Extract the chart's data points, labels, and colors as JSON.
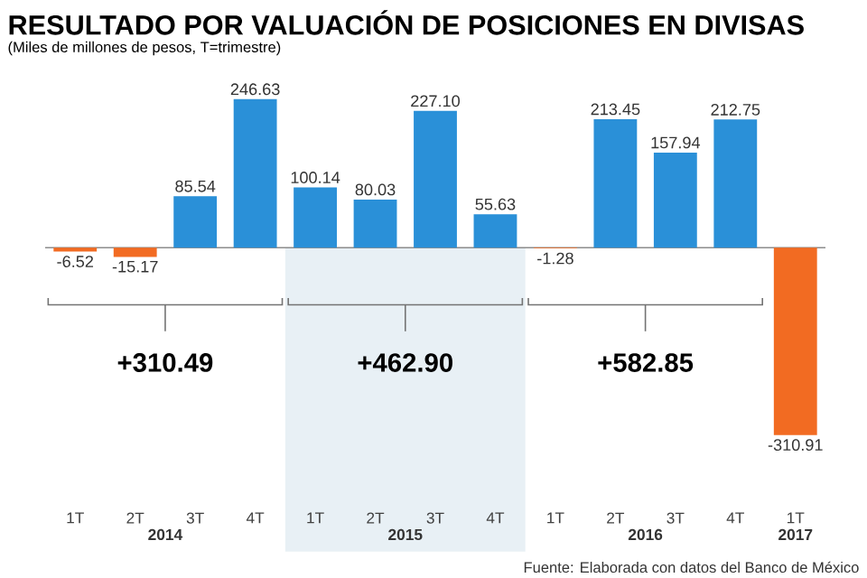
{
  "chart_data": {
    "type": "bar",
    "title": "RESULTADO POR VALUACIÓN DE POSICIONES EN DIVISAS",
    "subtitle": "(Miles de millones de pesos, T=trimestre)",
    "categories": [
      "1T",
      "2T",
      "3T",
      "4T",
      "1T",
      "2T",
      "3T",
      "4T",
      "1T",
      "2T",
      "3T",
      "4T",
      "1T"
    ],
    "values": [
      -6.52,
      -15.17,
      85.54,
      246.63,
      100.14,
      80.03,
      227.1,
      55.63,
      -1.28,
      213.45,
      157.94,
      212.75,
      -310.91
    ],
    "value_labels": [
      "-6.52",
      "-15.17",
      "85.54",
      "246.63",
      "100.14",
      "80.03",
      "227.10",
      "55.63",
      "-1.28",
      "213.45",
      "157.94",
      "212.75",
      "-310.91"
    ],
    "colors": [
      "#f26b22",
      "#f26b22",
      "#2a90d8",
      "#2a90d8",
      "#2a90d8",
      "#2a90d8",
      "#2a90d8",
      "#2a90d8",
      "#f26b22",
      "#2a90d8",
      "#2a90d8",
      "#2a90d8",
      "#f26b22"
    ],
    "annotations": [
      "+310.49",
      "+462.90",
      "+582.85",
      "2014",
      "2015",
      "2016",
      "2017",
      "Fuente: Elaborada con datos del Banco de México"
    ]
  }
}
